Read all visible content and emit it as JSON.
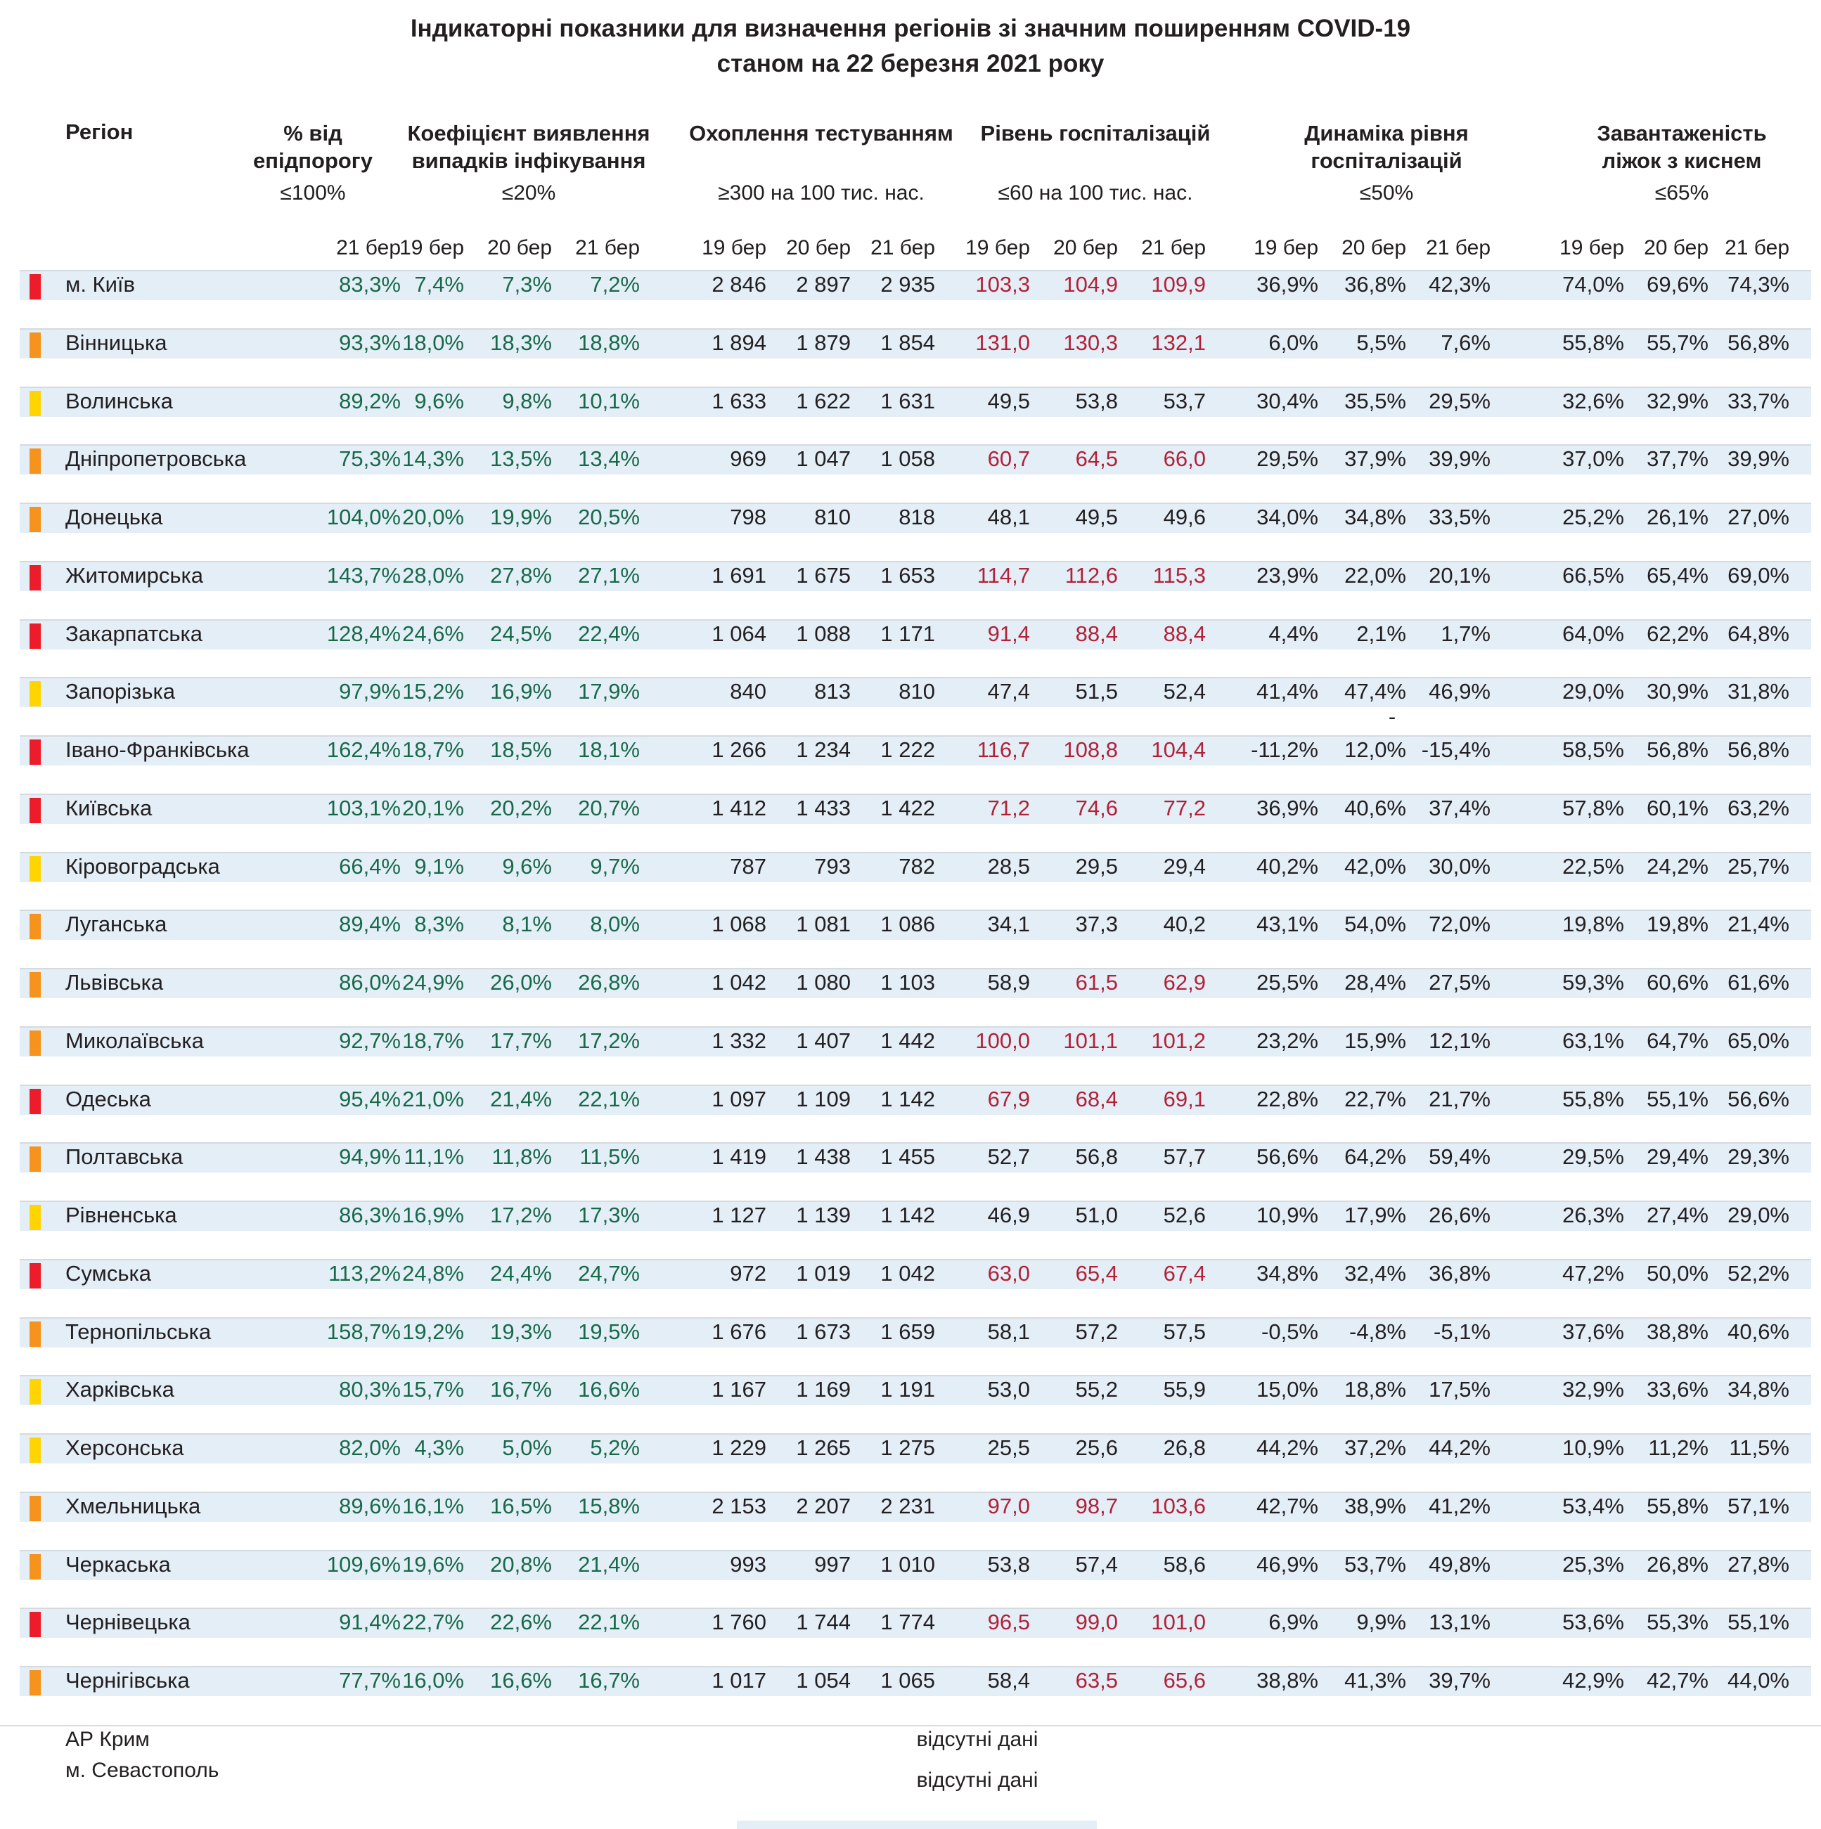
{
  "title": {
    "line1": "Індикаторні показники для визначення регіонів зі значним поширенням COVID-19",
    "line2": "станом на 22 березня 2021 року"
  },
  "colors": {
    "red_marker": "#ec1c2b",
    "orange_marker": "#f6931d",
    "yellow_marker": "#ffd400",
    "green_text": "#17694a",
    "red_text": "#b12239",
    "black_text": "#231f20",
    "band_bg": "#e4eef7"
  },
  "columns": {
    "region": "Регіон",
    "groups": [
      {
        "title_lines": [
          "% від",
          "епідпорогу"
        ],
        "threshold": "≤100%",
        "dates": [
          "21 бер"
        ]
      },
      {
        "title_lines": [
          "Коефіцієнт виявлення",
          "випадків інфікування"
        ],
        "threshold": "≤20%",
        "dates": [
          "19 бер",
          "20 бер",
          "21 бер"
        ]
      },
      {
        "title_lines": [
          "Охоплення тестуванням"
        ],
        "threshold": "≥300 на 100 тис. нас.",
        "dates": [
          "19 бер",
          "20 бер",
          "21 бер"
        ]
      },
      {
        "title_lines": [
          "Рівень госпіталізацій"
        ],
        "threshold": "≤60 на 100 тис. нас.",
        "dates": [
          "19 бер",
          "20 бер",
          "21 бер"
        ]
      },
      {
        "title_lines": [
          "Динаміка рівня",
          "госпіталізацій"
        ],
        "threshold": "≤50%",
        "dates": [
          "19 бер",
          "20 бер",
          "21 бер"
        ]
      },
      {
        "title_lines": [
          "Завантаженість",
          "ліжок з киснем"
        ],
        "threshold": "≤65%",
        "dates": [
          "19 бер",
          "20 бер",
          "21 бер"
        ]
      }
    ]
  },
  "stray_dash": "-",
  "regions": [
    {
      "name": "м. Київ",
      "marker": "red",
      "epid": "83,3%",
      "coef": [
        "7,4%",
        "7,3%",
        "7,2%"
      ],
      "test": [
        "2 846",
        "2 897",
        "2 935"
      ],
      "hosp": [
        "103,3",
        "104,9",
        "109,9"
      ],
      "hosp_alert": [
        true,
        true,
        true
      ],
      "dyn": [
        "36,9%",
        "36,8%",
        "42,3%"
      ],
      "beds": [
        "74,0%",
        "69,6%",
        "74,3%"
      ]
    },
    {
      "name": "Вінницька",
      "marker": "orange",
      "epid": "93,3%",
      "coef": [
        "18,0%",
        "18,3%",
        "18,8%"
      ],
      "test": [
        "1 894",
        "1 879",
        "1 854"
      ],
      "hosp": [
        "131,0",
        "130,3",
        "132,1"
      ],
      "hosp_alert": [
        true,
        true,
        true
      ],
      "dyn": [
        "6,0%",
        "5,5%",
        "7,6%"
      ],
      "beds": [
        "55,8%",
        "55,7%",
        "56,8%"
      ]
    },
    {
      "name": "Волинська",
      "marker": "yellow",
      "epid": "89,2%",
      "coef": [
        "9,6%",
        "9,8%",
        "10,1%"
      ],
      "test": [
        "1 633",
        "1 622",
        "1 631"
      ],
      "hosp": [
        "49,5",
        "53,8",
        "53,7"
      ],
      "hosp_alert": [
        false,
        false,
        false
      ],
      "dyn": [
        "30,4%",
        "35,5%",
        "29,5%"
      ],
      "beds": [
        "32,6%",
        "32,9%",
        "33,7%"
      ]
    },
    {
      "name": "Дніпропетровська",
      "marker": "orange",
      "epid": "75,3%",
      "coef": [
        "14,3%",
        "13,5%",
        "13,4%"
      ],
      "test": [
        "969",
        "1 047",
        "1 058"
      ],
      "hosp": [
        "60,7",
        "64,5",
        "66,0"
      ],
      "hosp_alert": [
        true,
        true,
        true
      ],
      "dyn": [
        "29,5%",
        "37,9%",
        "39,9%"
      ],
      "beds": [
        "37,0%",
        "37,7%",
        "39,9%"
      ]
    },
    {
      "name": "Донецька",
      "marker": "orange",
      "epid": "104,0%",
      "coef": [
        "20,0%",
        "19,9%",
        "20,5%"
      ],
      "test": [
        "798",
        "810",
        "818"
      ],
      "hosp": [
        "48,1",
        "49,5",
        "49,6"
      ],
      "hosp_alert": [
        false,
        false,
        false
      ],
      "dyn": [
        "34,0%",
        "34,8%",
        "33,5%"
      ],
      "beds": [
        "25,2%",
        "26,1%",
        "27,0%"
      ]
    },
    {
      "name": "Житомирська",
      "marker": "red",
      "epid": "143,7%",
      "coef": [
        "28,0%",
        "27,8%",
        "27,1%"
      ],
      "test": [
        "1 691",
        "1 675",
        "1 653"
      ],
      "hosp": [
        "114,7",
        "112,6",
        "115,3"
      ],
      "hosp_alert": [
        true,
        true,
        true
      ],
      "dyn": [
        "23,9%",
        "22,0%",
        "20,1%"
      ],
      "beds": [
        "66,5%",
        "65,4%",
        "69,0%"
      ]
    },
    {
      "name": "Закарпатська",
      "marker": "red",
      "epid": "128,4%",
      "coef": [
        "24,6%",
        "24,5%",
        "22,4%"
      ],
      "test": [
        "1 064",
        "1 088",
        "1 171"
      ],
      "hosp": [
        "91,4",
        "88,4",
        "88,4"
      ],
      "hosp_alert": [
        true,
        true,
        true
      ],
      "dyn": [
        "4,4%",
        "2,1%",
        "1,7%"
      ],
      "beds": [
        "64,0%",
        "62,2%",
        "64,8%"
      ]
    },
    {
      "name": "Запорізька",
      "marker": "yellow",
      "epid": "97,9%",
      "coef": [
        "15,2%",
        "16,9%",
        "17,9%"
      ],
      "test": [
        "840",
        "813",
        "810"
      ],
      "hosp": [
        "47,4",
        "51,5",
        "52,4"
      ],
      "hosp_alert": [
        false,
        false,
        false
      ],
      "dyn": [
        "41,4%",
        "47,4%",
        "46,9%"
      ],
      "beds": [
        "29,0%",
        "30,9%",
        "31,8%"
      ]
    },
    {
      "name": "Івано-Франківська",
      "marker": "red",
      "epid": "162,4%",
      "coef": [
        "18,7%",
        "18,5%",
        "18,1%"
      ],
      "test": [
        "1 266",
        "1 234",
        "1 222"
      ],
      "hosp": [
        "116,7",
        "108,8",
        "104,4"
      ],
      "hosp_alert": [
        true,
        true,
        true
      ],
      "dyn": [
        "-11,2%",
        "12,0%",
        "-15,4%"
      ],
      "beds": [
        "58,5%",
        "56,8%",
        "56,8%"
      ]
    },
    {
      "name": "Київська",
      "marker": "red",
      "epid": "103,1%",
      "coef": [
        "20,1%",
        "20,2%",
        "20,7%"
      ],
      "test": [
        "1 412",
        "1 433",
        "1 422"
      ],
      "hosp": [
        "71,2",
        "74,6",
        "77,2"
      ],
      "hosp_alert": [
        true,
        true,
        true
      ],
      "dyn": [
        "36,9%",
        "40,6%",
        "37,4%"
      ],
      "beds": [
        "57,8%",
        "60,1%",
        "63,2%"
      ]
    },
    {
      "name": "Кіровоградська",
      "marker": "yellow",
      "epid": "66,4%",
      "coef": [
        "9,1%",
        "9,6%",
        "9,7%"
      ],
      "test": [
        "787",
        "793",
        "782"
      ],
      "hosp": [
        "28,5",
        "29,5",
        "29,4"
      ],
      "hosp_alert": [
        false,
        false,
        false
      ],
      "dyn": [
        "40,2%",
        "42,0%",
        "30,0%"
      ],
      "beds": [
        "22,5%",
        "24,2%",
        "25,7%"
      ]
    },
    {
      "name": "Луганська",
      "marker": "orange",
      "epid": "89,4%",
      "coef": [
        "8,3%",
        "8,1%",
        "8,0%"
      ],
      "test": [
        "1 068",
        "1 081",
        "1 086"
      ],
      "hosp": [
        "34,1",
        "37,3",
        "40,2"
      ],
      "hosp_alert": [
        false,
        false,
        false
      ],
      "dyn": [
        "43,1%",
        "54,0%",
        "72,0%"
      ],
      "beds": [
        "19,8%",
        "19,8%",
        "21,4%"
      ]
    },
    {
      "name": "Львівська",
      "marker": "orange",
      "epid": "86,0%",
      "coef": [
        "24,9%",
        "26,0%",
        "26,8%"
      ],
      "test": [
        "1 042",
        "1 080",
        "1 103"
      ],
      "hosp": [
        "58,9",
        "61,5",
        "62,9"
      ],
      "hosp_alert": [
        false,
        true,
        true
      ],
      "dyn": [
        "25,5%",
        "28,4%",
        "27,5%"
      ],
      "beds": [
        "59,3%",
        "60,6%",
        "61,6%"
      ]
    },
    {
      "name": "Миколаївська",
      "marker": "orange",
      "epid": "92,7%",
      "coef": [
        "18,7%",
        "17,7%",
        "17,2%"
      ],
      "test": [
        "1 332",
        "1 407",
        "1 442"
      ],
      "hosp": [
        "100,0",
        "101,1",
        "101,2"
      ],
      "hosp_alert": [
        true,
        true,
        true
      ],
      "dyn": [
        "23,2%",
        "15,9%",
        "12,1%"
      ],
      "beds": [
        "63,1%",
        "64,7%",
        "65,0%"
      ]
    },
    {
      "name": "Одеська",
      "marker": "red",
      "epid": "95,4%",
      "coef": [
        "21,0%",
        "21,4%",
        "22,1%"
      ],
      "test": [
        "1 097",
        "1 109",
        "1 142"
      ],
      "hosp": [
        "67,9",
        "68,4",
        "69,1"
      ],
      "hosp_alert": [
        true,
        true,
        true
      ],
      "dyn": [
        "22,8%",
        "22,7%",
        "21,7%"
      ],
      "beds": [
        "55,8%",
        "55,1%",
        "56,6%"
      ]
    },
    {
      "name": "Полтавська",
      "marker": "orange",
      "epid": "94,9%",
      "coef": [
        "11,1%",
        "11,8%",
        "11,5%"
      ],
      "test": [
        "1 419",
        "1 438",
        "1 455"
      ],
      "hosp": [
        "52,7",
        "56,8",
        "57,7"
      ],
      "hosp_alert": [
        false,
        false,
        false
      ],
      "dyn": [
        "56,6%",
        "64,2%",
        "59,4%"
      ],
      "beds": [
        "29,5%",
        "29,4%",
        "29,3%"
      ]
    },
    {
      "name": "Рівненська",
      "marker": "yellow",
      "epid": "86,3%",
      "coef": [
        "16,9%",
        "17,2%",
        "17,3%"
      ],
      "test": [
        "1 127",
        "1 139",
        "1 142"
      ],
      "hosp": [
        "46,9",
        "51,0",
        "52,6"
      ],
      "hosp_alert": [
        false,
        false,
        false
      ],
      "dyn": [
        "10,9%",
        "17,9%",
        "26,6%"
      ],
      "beds": [
        "26,3%",
        "27,4%",
        "29,0%"
      ]
    },
    {
      "name": "Сумська",
      "marker": "red",
      "epid": "113,2%",
      "coef": [
        "24,8%",
        "24,4%",
        "24,7%"
      ],
      "test": [
        "972",
        "1 019",
        "1 042"
      ],
      "hosp": [
        "63,0",
        "65,4",
        "67,4"
      ],
      "hosp_alert": [
        true,
        true,
        true
      ],
      "dyn": [
        "34,8%",
        "32,4%",
        "36,8%"
      ],
      "beds": [
        "47,2%",
        "50,0%",
        "52,2%"
      ]
    },
    {
      "name": "Тернопільська",
      "marker": "orange",
      "epid": "158,7%",
      "coef": [
        "19,2%",
        "19,3%",
        "19,5%"
      ],
      "test": [
        "1 676",
        "1 673",
        "1 659"
      ],
      "hosp": [
        "58,1",
        "57,2",
        "57,5"
      ],
      "hosp_alert": [
        false,
        false,
        false
      ],
      "dyn": [
        "-0,5%",
        "-4,8%",
        "-5,1%"
      ],
      "beds": [
        "37,6%",
        "38,8%",
        "40,6%"
      ]
    },
    {
      "name": "Харківська",
      "marker": "yellow",
      "epid": "80,3%",
      "coef": [
        "15,7%",
        "16,7%",
        "16,6%"
      ],
      "test": [
        "1 167",
        "1 169",
        "1 191"
      ],
      "hosp": [
        "53,0",
        "55,2",
        "55,9"
      ],
      "hosp_alert": [
        false,
        false,
        false
      ],
      "dyn": [
        "15,0%",
        "18,8%",
        "17,5%"
      ],
      "beds": [
        "32,9%",
        "33,6%",
        "34,8%"
      ]
    },
    {
      "name": "Херсонська",
      "marker": "yellow",
      "epid": "82,0%",
      "coef": [
        "4,3%",
        "5,0%",
        "5,2%"
      ],
      "test": [
        "1 229",
        "1 265",
        "1 275"
      ],
      "hosp": [
        "25,5",
        "25,6",
        "26,8"
      ],
      "hosp_alert": [
        false,
        false,
        false
      ],
      "dyn": [
        "44,2%",
        "37,2%",
        "44,2%"
      ],
      "beds": [
        "10,9%",
        "11,2%",
        "11,5%"
      ]
    },
    {
      "name": "Хмельницька",
      "marker": "orange",
      "epid": "89,6%",
      "coef": [
        "16,1%",
        "16,5%",
        "15,8%"
      ],
      "test": [
        "2 153",
        "2 207",
        "2 231"
      ],
      "hosp": [
        "97,0",
        "98,7",
        "103,6"
      ],
      "hosp_alert": [
        true,
        true,
        true
      ],
      "dyn": [
        "42,7%",
        "38,9%",
        "41,2%"
      ],
      "beds": [
        "53,4%",
        "55,8%",
        "57,1%"
      ]
    },
    {
      "name": "Черкаська",
      "marker": "orange",
      "epid": "109,6%",
      "coef": [
        "19,6%",
        "20,8%",
        "21,4%"
      ],
      "test": [
        "993",
        "997",
        "1 010"
      ],
      "hosp": [
        "53,8",
        "57,4",
        "58,6"
      ],
      "hosp_alert": [
        false,
        false,
        false
      ],
      "dyn": [
        "46,9%",
        "53,7%",
        "49,8%"
      ],
      "beds": [
        "25,3%",
        "26,8%",
        "27,8%"
      ]
    },
    {
      "name": "Чернівецька",
      "marker": "red",
      "epid": "91,4%",
      "coef": [
        "22,7%",
        "22,6%",
        "22,1%"
      ],
      "test": [
        "1 760",
        "1 744",
        "1 774"
      ],
      "hosp": [
        "96,5",
        "99,0",
        "101,0"
      ],
      "hosp_alert": [
        true,
        true,
        true
      ],
      "dyn": [
        "6,9%",
        "9,9%",
        "13,1%"
      ],
      "beds": [
        "53,6%",
        "55,3%",
        "55,1%"
      ]
    },
    {
      "name": "Чернігівська",
      "marker": "orange",
      "epid": "77,7%",
      "coef": [
        "16,0%",
        "16,6%",
        "16,7%"
      ],
      "test": [
        "1 017",
        "1 054",
        "1 065"
      ],
      "hosp": [
        "58,4",
        "63,5",
        "65,6"
      ],
      "hosp_alert": [
        false,
        true,
        true
      ],
      "dyn": [
        "38,8%",
        "41,3%",
        "39,7%"
      ],
      "beds": [
        "42,9%",
        "42,7%",
        "44,0%"
      ]
    }
  ],
  "no_data": [
    {
      "name": "АР Крим",
      "value": "відсутні дані"
    },
    {
      "name": "м. Севастополь",
      "value": "відсутні дані"
    }
  ]
}
